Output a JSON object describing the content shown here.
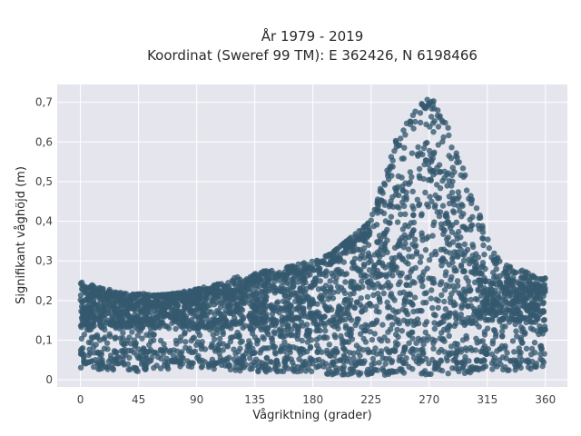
{
  "chart_data": {
    "type": "scatter",
    "title": "År 1979 - 2019",
    "subtitle": "Koordinat (Sweref 99 TM): E 362426, N 6198466",
    "xlabel": "Vågriktning (grader)",
    "ylabel": "Signifikant våghöjd (m)",
    "xlim": [
      -18,
      377
    ],
    "ylim": [
      -0.018,
      0.745
    ],
    "x_ticks": [
      0,
      45,
      90,
      135,
      180,
      225,
      270,
      315,
      360
    ],
    "x_tick_labels": [
      "0",
      "45",
      "90",
      "135",
      "180",
      "225",
      "270",
      "315",
      "360"
    ],
    "y_ticks": [
      0,
      0.1,
      0.2,
      0.3,
      0.4,
      0.5,
      0.6,
      0.7
    ],
    "y_tick_labels": [
      "0",
      "0,1",
      "0,2",
      "0,3",
      "0,4",
      "0,5",
      "0,6",
      "0,7"
    ],
    "grid": true,
    "legend": "none",
    "marker_color": "#34596e",
    "background_color": "#e5e5ee",
    "series": [
      {
        "upper_envelope": {
          "x": [
            0,
            10,
            20,
            30,
            45,
            60,
            75,
            90,
            105,
            120,
            135,
            150,
            165,
            180,
            195,
            210,
            220,
            225,
            230,
            240,
            245,
            250,
            255,
            260,
            265,
            270,
            275,
            280,
            285,
            290,
            295,
            300,
            310,
            315,
            320,
            330,
            340,
            350,
            360
          ],
          "y": [
            0.25,
            0.24,
            0.23,
            0.22,
            0.22,
            0.21,
            0.22,
            0.23,
            0.24,
            0.26,
            0.27,
            0.28,
            0.29,
            0.3,
            0.32,
            0.34,
            0.38,
            0.41,
            0.46,
            0.56,
            0.62,
            0.64,
            0.66,
            0.68,
            0.71,
            0.71,
            0.7,
            0.68,
            0.64,
            0.58,
            0.55,
            0.49,
            0.41,
            0.36,
            0.32,
            0.29,
            0.28,
            0.27,
            0.26
          ]
        },
        "lower_envelope": {
          "x": [
            0,
            45,
            90,
            135,
            180,
            200,
            225,
            270,
            315,
            360
          ],
          "y": [
            0.03,
            0.02,
            0.03,
            0.02,
            0.02,
            0.01,
            0.01,
            0.01,
            0.02,
            0.03
          ]
        },
        "dense_band": {
          "x": [
            0,
            45,
            90,
            135,
            180,
            225,
            270,
            315,
            360
          ],
          "low": [
            0.13,
            0.13,
            0.13,
            0.13,
            0.1,
            0.12,
            0.12,
            0.15,
            0.15
          ],
          "high": [
            0.23,
            0.21,
            0.22,
            0.25,
            0.28,
            0.4,
            0.62,
            0.26,
            0.24
          ]
        }
      }
    ]
  }
}
